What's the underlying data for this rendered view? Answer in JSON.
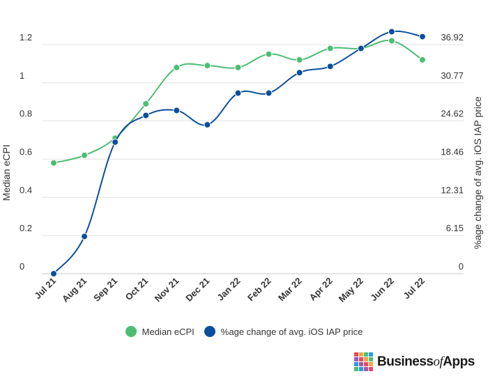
{
  "chart_data": {
    "type": "line",
    "categories": [
      "Jul 21",
      "Aug 21",
      "Sep 21",
      "Oct 21",
      "Nov 21",
      "Dec 21",
      "Jan 22",
      "Feb 22",
      "Mar 22",
      "Apr 22",
      "May 22",
      "Jun 22",
      "Jul 22"
    ],
    "series": [
      {
        "name": "Median eCPI",
        "axis": "left",
        "color": "#4dbd74",
        "values": [
          0.58,
          0.62,
          0.71,
          0.89,
          1.08,
          1.09,
          1.08,
          1.15,
          1.12,
          1.18,
          1.18,
          1.22,
          1.12
        ]
      },
      {
        "name": "%age change of avg. iOS IAP price",
        "axis": "right",
        "color": "#0b4f9c",
        "values": [
          0,
          6.0,
          21.2,
          25.5,
          26.3,
          24.0,
          29.1,
          29.1,
          32.4,
          33.4,
          36.3,
          39.0,
          38.2
        ]
      }
    ],
    "ylabel": "Median eCPI",
    "y2label": "%age change of avg. iOS IAP price",
    "ylim": [
      0,
      1.2
    ],
    "yticks": [
      "0",
      "0.2",
      "0.4",
      "0.6",
      "0.8",
      "1",
      "1.2"
    ],
    "y2lim": [
      0,
      36.92
    ],
    "y2ticks": [
      "0",
      "6.15",
      "12.31",
      "18.46",
      "24.62",
      "30.77",
      "36.92"
    ],
    "grid": true,
    "legend_position": "bottom"
  },
  "brand": {
    "part1": "Business",
    "part2": "of",
    "part3": "Apps"
  }
}
